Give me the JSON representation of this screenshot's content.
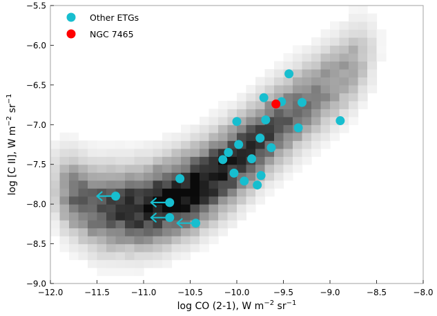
{
  "chart_data": {
    "type": "scatter",
    "xlabel": "log CO (2-1), W m",
    "xlabel_unit": {
      "sup1": "−2",
      "mid": " sr",
      "sup2": "−1"
    },
    "ylabel": "log [C II], W m",
    "ylabel_unit": {
      "sup1": "−2",
      "mid": " sr",
      "sup2": "−1"
    },
    "xlim": [
      -12.0,
      -8.0
    ],
    "ylim": [
      -9.0,
      -5.5
    ],
    "x_ticks": [
      -12.0,
      -11.5,
      -11.0,
      -10.5,
      -10.0,
      -9.5,
      -9.0,
      -8.5,
      -8.0
    ],
    "x_tick_labels": [
      "−12.0",
      "−11.5",
      "−11.0",
      "−10.5",
      "−10.0",
      "−9.5",
      "−9.0",
      "−8.5",
      "−8.0"
    ],
    "y_ticks": [
      -9.0,
      -8.5,
      -8.0,
      -7.5,
      -7.0,
      -6.5,
      -6.0,
      -5.5
    ],
    "y_tick_labels": [
      "−9.0",
      "−8.5",
      "−8.0",
      "−7.5",
      "−7.0",
      "−6.5",
      "−6.0",
      "−5.5"
    ],
    "grid": false,
    "legend_position": "top-left",
    "background_density": {
      "description_type": "2d-histogram",
      "ridge": [
        [
          -12.0,
          -7.75
        ],
        [
          -11.5,
          -8.05
        ],
        [
          -11.0,
          -8.05
        ],
        [
          -10.5,
          -7.85
        ],
        [
          -10.0,
          -7.45
        ],
        [
          -9.5,
          -6.95
        ],
        [
          -9.0,
          -6.5
        ],
        [
          -8.5,
          -6.05
        ]
      ],
      "color": "#000000"
    },
    "series": [
      {
        "name": "Other ETGs",
        "color": "#17becf",
        "points": [
          {
            "x": -9.44,
            "y": -6.36
          },
          {
            "x": -9.71,
            "y": -6.66
          },
          {
            "x": -9.52,
            "y": -6.71
          },
          {
            "x": -9.3,
            "y": -6.72
          },
          {
            "x": -8.89,
            "y": -6.95
          },
          {
            "x": -10.0,
            "y": -6.96
          },
          {
            "x": -9.69,
            "y": -6.94
          },
          {
            "x": -9.34,
            "y": -7.04
          },
          {
            "x": -9.75,
            "y": -7.17
          },
          {
            "x": -9.98,
            "y": -7.25
          },
          {
            "x": -9.63,
            "y": -7.29
          },
          {
            "x": -10.09,
            "y": -7.35
          },
          {
            "x": -10.15,
            "y": -7.44
          },
          {
            "x": -9.84,
            "y": -7.43
          },
          {
            "x": -10.03,
            "y": -7.61
          },
          {
            "x": -9.74,
            "y": -7.64
          },
          {
            "x": -9.92,
            "y": -7.71
          },
          {
            "x": -9.78,
            "y": -7.76
          },
          {
            "x": -10.61,
            "y": -7.68
          },
          {
            "x": -11.3,
            "y": -7.9,
            "upper_limit_x": true
          },
          {
            "x": -10.72,
            "y": -7.98,
            "upper_limit_x": true
          },
          {
            "x": -10.72,
            "y": -8.17,
            "upper_limit_x": true
          },
          {
            "x": -10.44,
            "y": -8.24,
            "upper_limit_x": true
          }
        ]
      },
      {
        "name": "NGC 7465",
        "color": "#ff0000",
        "points": [
          {
            "x": -9.58,
            "y": -6.74
          }
        ]
      }
    ]
  }
}
